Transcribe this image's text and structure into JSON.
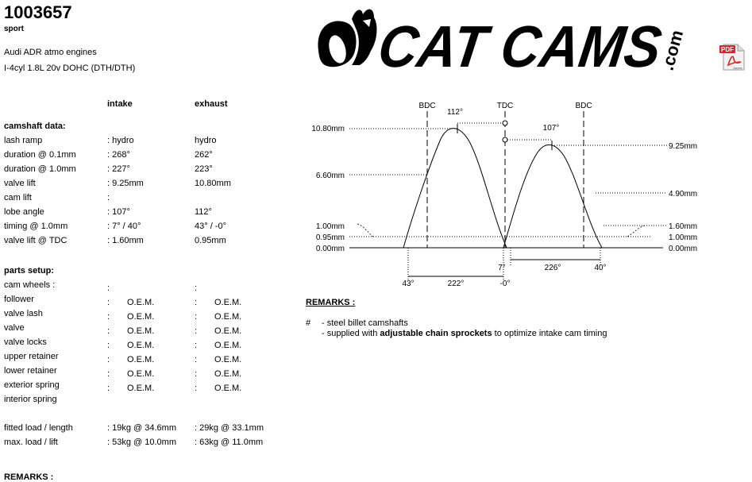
{
  "header": {
    "part_number": "1003657",
    "variant": "sport",
    "engine_application": "Audi ADR atmo engines",
    "engine_code": "I-4cyl 1.8L 20v DOHC (DTH/DTH)"
  },
  "logo": {
    "text": "CAT CAMS",
    "suffix": ".com",
    "color": "#000000"
  },
  "pdf_icon": {
    "label": "PDF",
    "sublabel": "Adobe",
    "accent": "#d8262b"
  },
  "columns": {
    "intake": "intake",
    "exhaust": "exhaust"
  },
  "camshaft_data": {
    "heading": "camshaft data:",
    "rows": [
      {
        "label": "lash ramp",
        "intake": ": hydro",
        "exhaust": "hydro"
      },
      {
        "label": "duration @ 0.1mm",
        "intake": ": 268°",
        "exhaust": "262°"
      },
      {
        "label": "duration @ 1.0mm",
        "intake": ": 227°",
        "exhaust": "223°"
      },
      {
        "label": "valve lift",
        "intake": ": 9.25mm",
        "exhaust": "10.80mm"
      },
      {
        "label": "cam lift",
        "intake": ":",
        "exhaust": ""
      },
      {
        "label": "lobe angle",
        "intake": ": 107°",
        "exhaust": "112°"
      },
      {
        "label": "timing @ 1.0mm",
        "intake": ": 7° / 40°",
        "exhaust": "43° / -0°"
      },
      {
        "label": "valve lift @ TDC",
        "intake": ": 1.60mm",
        "exhaust": "0.95mm"
      }
    ]
  },
  "parts_setup": {
    "heading": "parts setup:",
    "rows": [
      {
        "label": "cam wheels :",
        "intake_colon": ":",
        "intake": "",
        "exhaust_colon": ":",
        "exhaust": ""
      },
      {
        "label": "follower",
        "intake_colon": ":",
        "intake": "O.E.M.",
        "exhaust_colon": ":",
        "exhaust": "O.E.M."
      },
      {
        "label": "valve lash",
        "intake_colon": ":",
        "intake": "O.E.M.",
        "exhaust_colon": ":",
        "exhaust": "O.E.M."
      },
      {
        "label": "valve",
        "intake_colon": ":",
        "intake": "O.E.M.",
        "exhaust_colon": ":",
        "exhaust": "O.E.M."
      },
      {
        "label": "valve locks",
        "intake_colon": ":",
        "intake": "O.E.M.",
        "exhaust_colon": ":",
        "exhaust": "O.E.M."
      },
      {
        "label": "upper retainer",
        "intake_colon": ":",
        "intake": "O.E.M.",
        "exhaust_colon": ":",
        "exhaust": "O.E.M."
      },
      {
        "label": "lower retainer",
        "intake_colon": ":",
        "intake": "O.E.M.",
        "exhaust_colon": ":",
        "exhaust": "O.E.M."
      },
      {
        "label": "exterior spring",
        "intake_colon": ":",
        "intake": "O.E.M.",
        "exhaust_colon": ":",
        "exhaust": "O.E.M."
      },
      {
        "label": "interior spring",
        "intake_colon": "",
        "intake": "",
        "exhaust_colon": "",
        "exhaust": ""
      }
    ]
  },
  "spring_loads": [
    {
      "label": "fitted load / length",
      "intake": ": 19kg @ 34.6mm",
      "exhaust": ": 29kg @ 33.1mm"
    },
    {
      "label": "max. load / lift",
      "intake": ": 53kg @ 10.0mm",
      "exhaust": ": 63kg @ 11.0mm"
    }
  ],
  "remarks": {
    "heading": "REMARKS :",
    "bullet": "#",
    "line1": "- steel billet camshafts",
    "line2_pre": "- supplied with ",
    "line2_bold": "adjustable chain sprockets",
    "line2_post": " to optimize intake cam timing"
  },
  "bottom_remarks": "REMARKS :",
  "diagram": {
    "markers": [
      "BDC",
      "TDC",
      "BDC"
    ],
    "peak_labels": [
      "112°",
      "107°"
    ],
    "left_lift_labels": [
      "10.80mm",
      "6.60mm",
      "1.00mm",
      "0.95mm",
      "0.00mm"
    ],
    "right_lift_labels": [
      "9.25mm",
      "4.90mm",
      "1.60mm",
      "1.00mm",
      "0.00mm"
    ],
    "timing_labels": [
      "43°",
      "222°",
      "-0°",
      "7°",
      "226°",
      "40°"
    ]
  }
}
